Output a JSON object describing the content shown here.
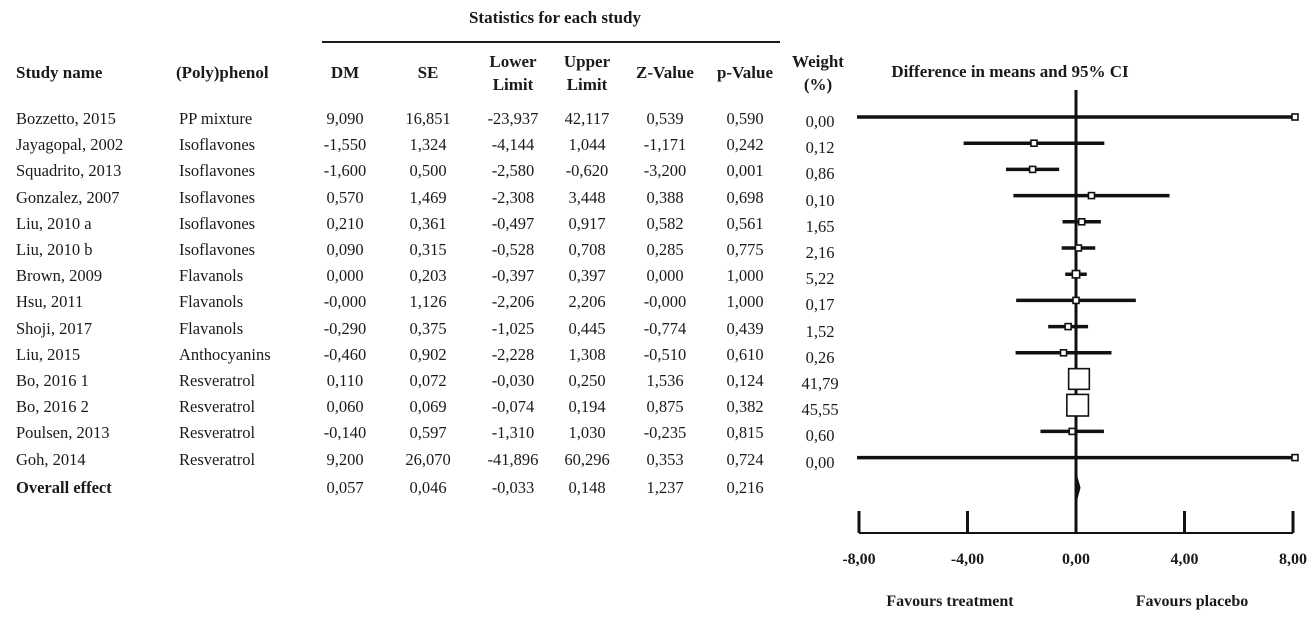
{
  "table": {
    "group_header": "Statistics for each study",
    "headers": {
      "study": "Study name",
      "polyphenol": "(Poly)phenol",
      "dm": "DM",
      "se": "SE",
      "lower1": "Lower",
      "lower2": "Limit",
      "upper1": "Upper",
      "upper2": "Limit",
      "z": "Z-Value",
      "p": "p-Value",
      "weight1": "Weight",
      "weight2": "(%)"
    },
    "rows": [
      {
        "study": "Bozzetto, 2015",
        "polyphenol": "PP mixture",
        "dm": "9,090",
        "se": "16,851",
        "lower": "-23,937",
        "upper": "42,117",
        "z": "0,539",
        "p": "0,590",
        "weight": "0,00"
      },
      {
        "study": "Jayagopal, 2002",
        "polyphenol": "Isoflavones",
        "dm": "-1,550",
        "se": "1,324",
        "lower": "-4,144",
        "upper": "1,044",
        "z": "-1,171",
        "p": "0,242",
        "weight": "0,12"
      },
      {
        "study": "Squadrito, 2013",
        "polyphenol": "Isoflavones",
        "dm": "-1,600",
        "se": "0,500",
        "lower": "-2,580",
        "upper": "-0,620",
        "z": "-3,200",
        "p": "0,001",
        "weight": "0,86"
      },
      {
        "study": "Gonzalez, 2007",
        "polyphenol": "Isoflavones",
        "dm": "0,570",
        "se": "1,469",
        "lower": "-2,308",
        "upper": "3,448",
        "z": "0,388",
        "p": "0,698",
        "weight": "0,10"
      },
      {
        "study": "Liu, 2010 a",
        "polyphenol": "Isoflavones",
        "dm": "0,210",
        "se": "0,361",
        "lower": "-0,497",
        "upper": "0,917",
        "z": "0,582",
        "p": "0,561",
        "weight": "1,65"
      },
      {
        "study": "Liu, 2010 b",
        "polyphenol": "Isoflavones",
        "dm": "0,090",
        "se": "0,315",
        "lower": "-0,528",
        "upper": "0,708",
        "z": "0,285",
        "p": "0,775",
        "weight": "2,16"
      },
      {
        "study": "Brown, 2009",
        "polyphenol": "Flavanols",
        "dm": "0,000",
        "se": "0,203",
        "lower": "-0,397",
        "upper": "0,397",
        "z": "0,000",
        "p": "1,000",
        "weight": "5,22"
      },
      {
        "study": "Hsu, 2011",
        "polyphenol": "Flavanols",
        "dm": "-0,000",
        "se": "1,126",
        "lower": "-2,206",
        "upper": "2,206",
        "z": "-0,000",
        "p": "1,000",
        "weight": "0,17"
      },
      {
        "study": "Shoji, 2017",
        "polyphenol": "Flavanols",
        "dm": "-0,290",
        "se": "0,375",
        "lower": "-1,025",
        "upper": "0,445",
        "z": "-0,774",
        "p": "0,439",
        "weight": "1,52"
      },
      {
        "study": "Liu, 2015",
        "polyphenol": "Anthocyanins",
        "dm": "-0,460",
        "se": "0,902",
        "lower": "-2,228",
        "upper": "1,308",
        "z": "-0,510",
        "p": "0,610",
        "weight": "0,26"
      },
      {
        "study": "Bo, 2016 1",
        "polyphenol": "Resveratrol",
        "dm": "0,110",
        "se": "0,072",
        "lower": "-0,030",
        "upper": "0,250",
        "z": "1,536",
        "p": "0,124",
        "weight": "41,79"
      },
      {
        "study": "Bo, 2016 2",
        "polyphenol": "Resveratrol",
        "dm": "0,060",
        "se": "0,069",
        "lower": "-0,074",
        "upper": "0,194",
        "z": "0,875",
        "p": "0,382",
        "weight": "45,55"
      },
      {
        "study": "Poulsen, 2013",
        "polyphenol": "Resveratrol",
        "dm": "-0,140",
        "se": "0,597",
        "lower": "-1,310",
        "upper": "1,030",
        "z": "-0,235",
        "p": "0,815",
        "weight": "0,60"
      },
      {
        "study": "Goh, 2014",
        "polyphenol": "Resveratrol",
        "dm": "9,200",
        "se": "26,070",
        "lower": "-41,896",
        "upper": "60,296",
        "z": "0,353",
        "p": "0,724",
        "weight": "0,00"
      }
    ],
    "overall": {
      "study": "Overall effect",
      "dm": "0,057",
      "se": "0,046",
      "lower": "-0,033",
      "upper": "0,148",
      "z": "1,237",
      "p": "0,216"
    }
  },
  "chart_data": {
    "type": "forest",
    "title": "Difference in means and 95% CI",
    "xlim": [
      -8,
      8
    ],
    "x_ticks": [
      -8,
      -4,
      0,
      4,
      8
    ],
    "x_tick_labels": [
      "-8,00",
      "-4,00",
      "0,00",
      "4,00",
      "8,00"
    ],
    "favours_left": "Favours treatment",
    "favours_right": "Favours placebo",
    "studies": [
      {
        "name": "Bozzetto, 2015",
        "dm": 9.09,
        "lower": -23.937,
        "upper": 42.117,
        "weight": 0.0
      },
      {
        "name": "Jayagopal, 2002",
        "dm": -1.55,
        "lower": -4.144,
        "upper": 1.044,
        "weight": 0.12
      },
      {
        "name": "Squadrito, 2013",
        "dm": -1.6,
        "lower": -2.58,
        "upper": -0.62,
        "weight": 0.86
      },
      {
        "name": "Gonzalez, 2007",
        "dm": 0.57,
        "lower": -2.308,
        "upper": 3.448,
        "weight": 0.1
      },
      {
        "name": "Liu, 2010 a",
        "dm": 0.21,
        "lower": -0.497,
        "upper": 0.917,
        "weight": 1.65
      },
      {
        "name": "Liu, 2010 b",
        "dm": 0.09,
        "lower": -0.528,
        "upper": 0.708,
        "weight": 2.16
      },
      {
        "name": "Brown, 2009",
        "dm": 0.0,
        "lower": -0.397,
        "upper": 0.397,
        "weight": 5.22
      },
      {
        "name": "Hsu, 2011",
        "dm": -0.0,
        "lower": -2.206,
        "upper": 2.206,
        "weight": 0.17
      },
      {
        "name": "Shoji, 2017",
        "dm": -0.29,
        "lower": -1.025,
        "upper": 0.445,
        "weight": 1.52
      },
      {
        "name": "Liu, 2015",
        "dm": -0.46,
        "lower": -2.228,
        "upper": 1.308,
        "weight": 0.26
      },
      {
        "name": "Bo, 2016 1",
        "dm": 0.11,
        "lower": -0.03,
        "upper": 0.25,
        "weight": 41.79
      },
      {
        "name": "Bo, 2016 2",
        "dm": 0.06,
        "lower": -0.074,
        "upper": 0.194,
        "weight": 45.55
      },
      {
        "name": "Poulsen, 2013",
        "dm": -0.14,
        "lower": -1.31,
        "upper": 1.03,
        "weight": 0.6
      },
      {
        "name": "Goh, 2014",
        "dm": 9.2,
        "lower": -41.896,
        "upper": 60.296,
        "weight": 0.0
      }
    ],
    "overall": {
      "dm": 0.057,
      "lower": -0.033,
      "upper": 0.148
    }
  }
}
